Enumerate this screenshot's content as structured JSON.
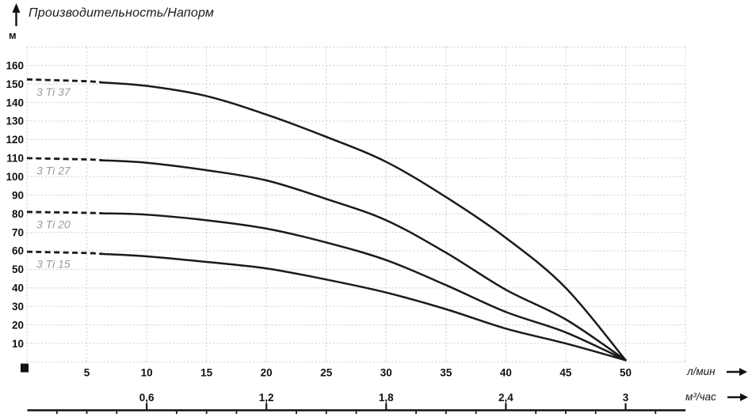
{
  "title": "Производительность/Напорм",
  "colors": {
    "curve": "#1a1a1a",
    "grid": "#d2d2d2",
    "curve_label": "#9a9a9a",
    "text": "#111111",
    "axis_bar": "#111111"
  },
  "y_axis": {
    "unit": "м",
    "ticks": [
      10,
      20,
      30,
      40,
      50,
      60,
      70,
      80,
      90,
      100,
      110,
      120,
      130,
      140,
      150,
      160
    ]
  },
  "x_axis": {
    "unit": "л/мин",
    "ticks": [
      5,
      10,
      15,
      20,
      25,
      30,
      35,
      40,
      45,
      50
    ]
  },
  "x_axis_secondary": {
    "unit": "м³/час",
    "labels": [
      {
        "x": 10,
        "text": "0,6"
      },
      {
        "x": 20,
        "text": "1,2"
      },
      {
        "x": 30,
        "text": "1,8"
      },
      {
        "x": 40,
        "text": "2,4"
      },
      {
        "x": 50,
        "text": "3"
      }
    ]
  },
  "chart_data": {
    "type": "line",
    "title": "Производительность/Напорм",
    "xlabel": "л/мин",
    "xlabel_secondary": "м³/час",
    "ylabel": "м",
    "xlim": [
      0,
      55
    ],
    "ylim": [
      0,
      170
    ],
    "grid": true,
    "legend_position": "inline-left",
    "x": [
      0,
      5,
      10,
      15,
      20,
      25,
      30,
      35,
      40,
      45,
      50
    ],
    "series": [
      {
        "name": "3 Ti 37",
        "values": [
          152.5,
          151.5,
          149,
          143.5,
          133.5,
          121.5,
          108,
          89,
          67,
          40,
          1
        ],
        "dashed_until_x": 6.3
      },
      {
        "name": "3 Ti 27",
        "values": [
          110,
          109.3,
          107.5,
          103.5,
          98,
          88,
          76.5,
          59,
          39,
          23,
          1
        ],
        "dashed_until_x": 6.3
      },
      {
        "name": "3 Ti 20",
        "values": [
          81,
          80.5,
          79.5,
          76.5,
          72,
          64.5,
          55,
          41.5,
          27,
          16,
          1
        ],
        "dashed_until_x": 6.3
      },
      {
        "name": "3 Ti 15",
        "values": [
          59.5,
          58.8,
          57,
          54,
          50.5,
          44.5,
          37.5,
          28.5,
          18,
          10,
          1
        ],
        "dashed_until_x": 6.3
      }
    ]
  }
}
